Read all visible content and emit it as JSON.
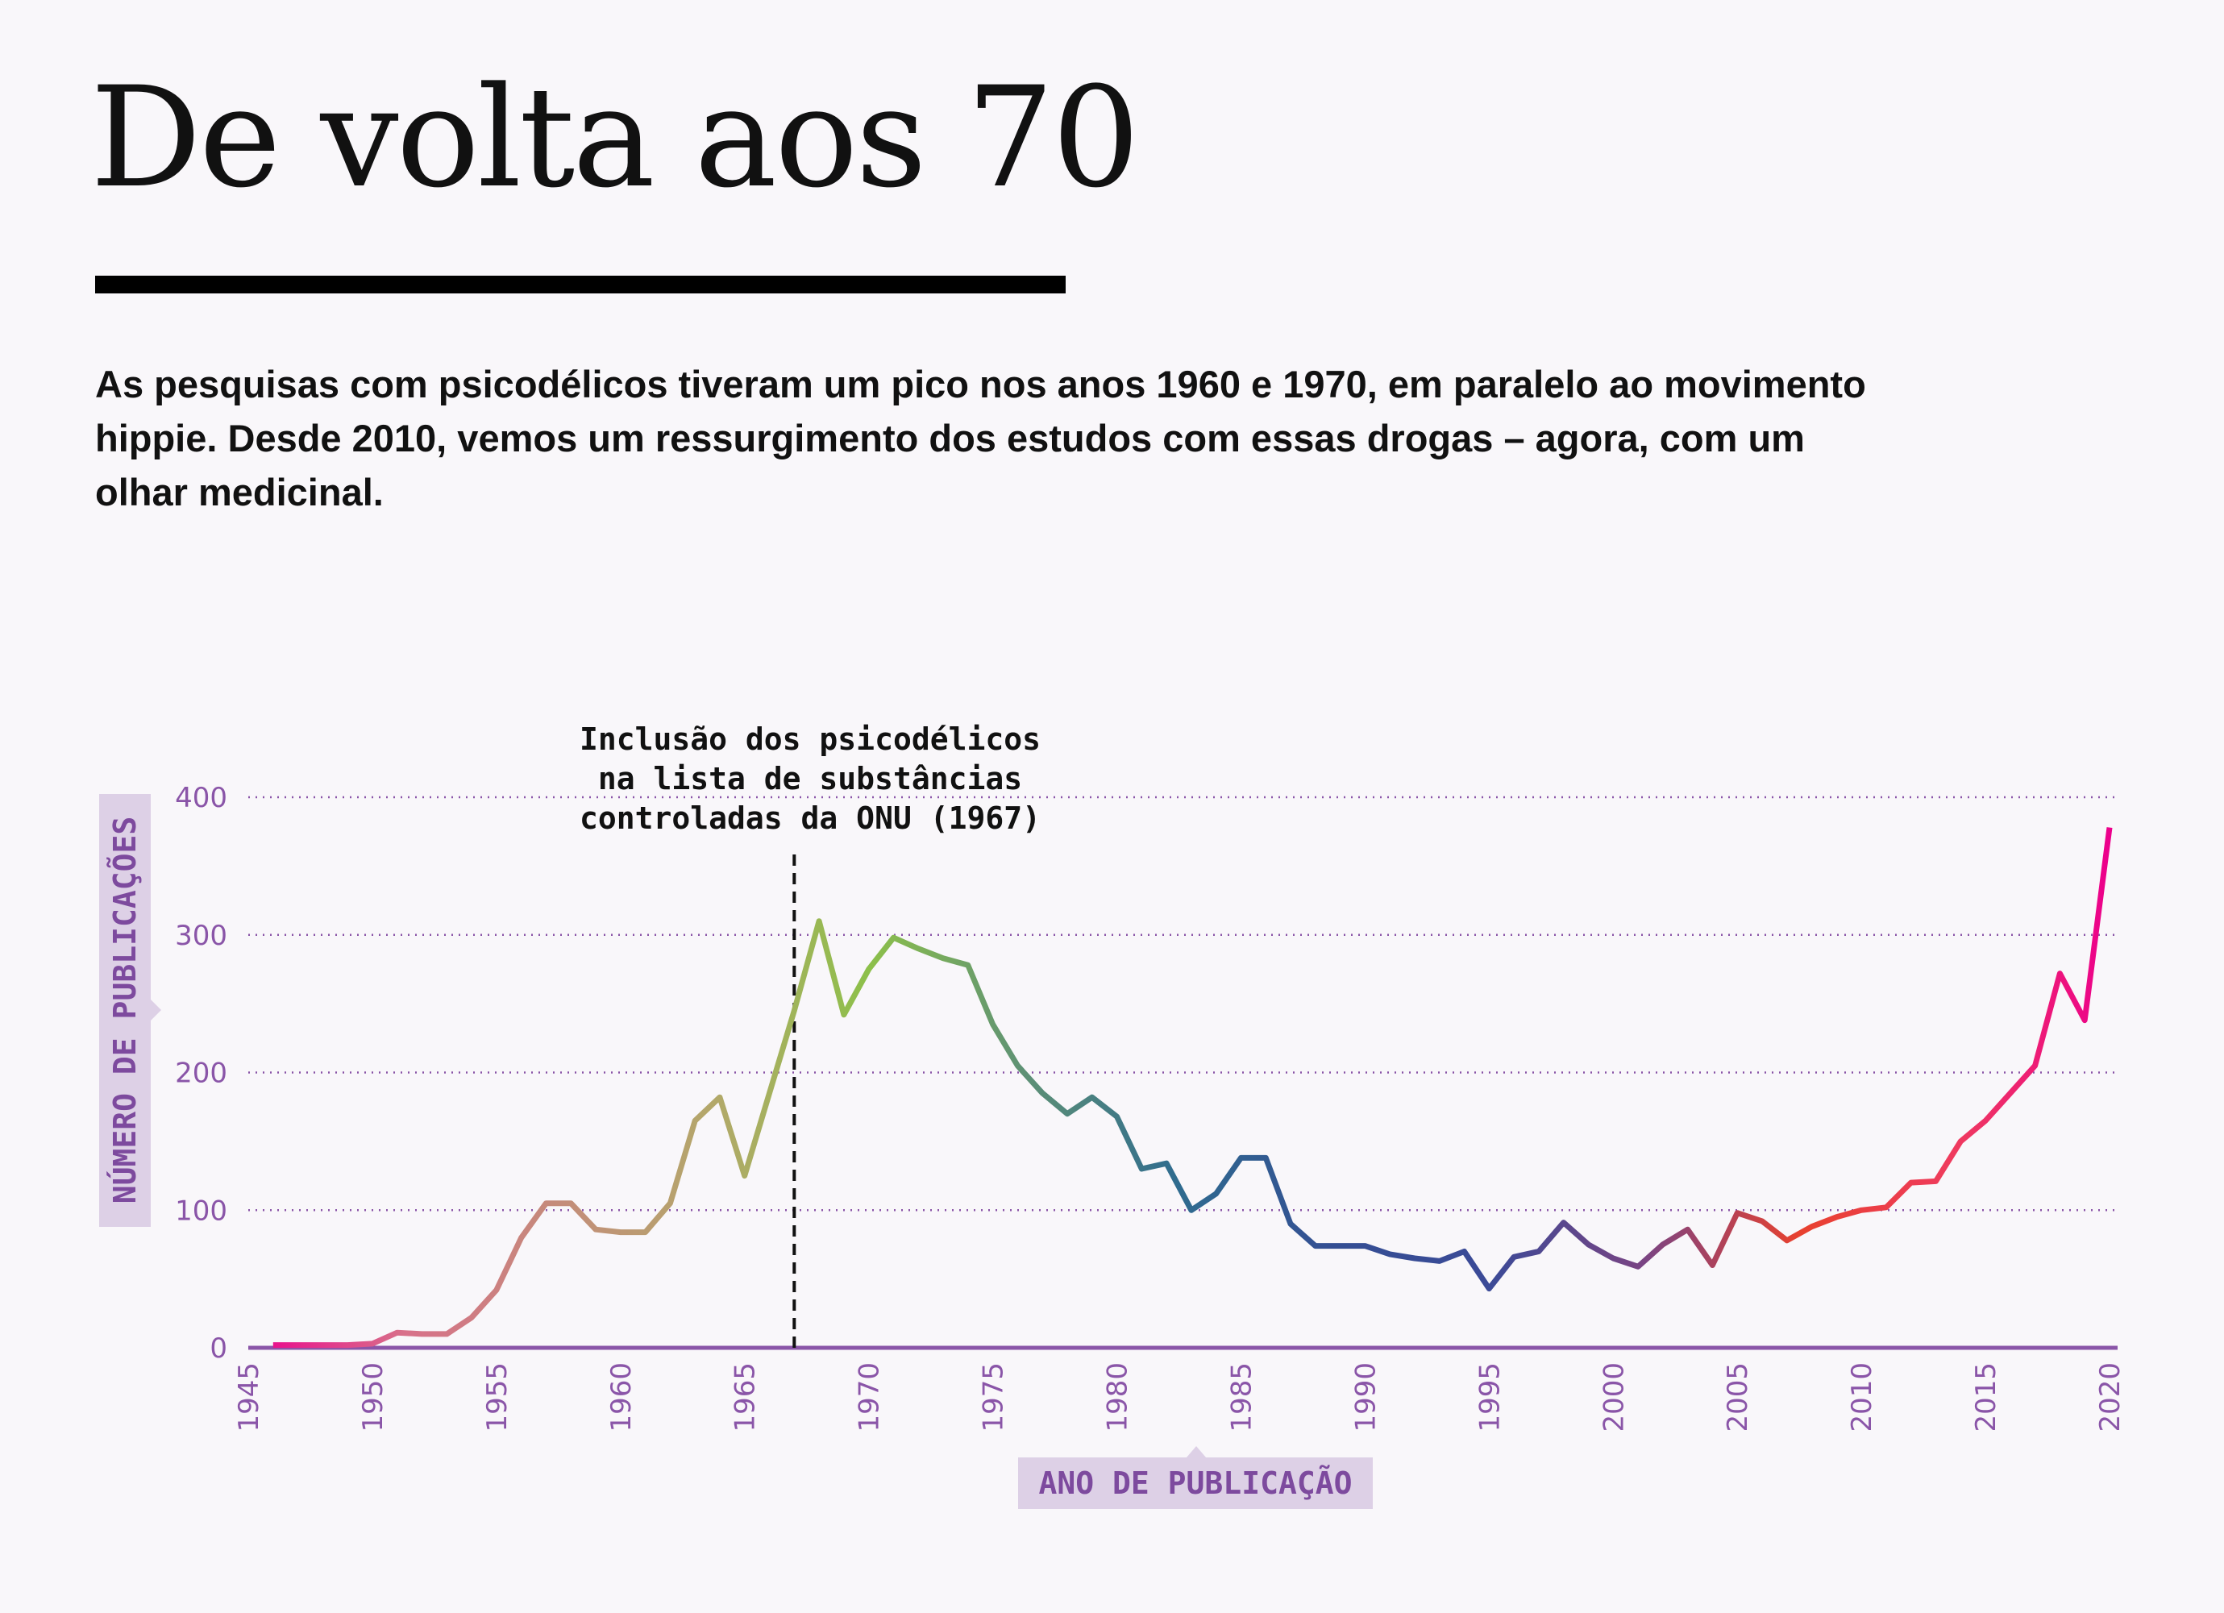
{
  "title": "De volta aos 70",
  "subtitle": "As pesquisas com psicodélicos tiveram um pico nos anos 1960 e 1970, em paralelo ao movimento hippie. Desde 2010, vemos um ressurgimento dos estudos com essas drogas – agora, com um olhar medicinal.",
  "chart_data": {
    "type": "line",
    "xlabel": "ANO DE PUBLICAÇÃO",
    "ylabel": "NÚMERO DE PUBLICAÇÕES",
    "xlim": [
      1945,
      2020
    ],
    "ylim": [
      0,
      400
    ],
    "xticks": [
      1945,
      1950,
      1955,
      1960,
      1965,
      1970,
      1975,
      1980,
      1985,
      1990,
      1995,
      2000,
      2005,
      2010,
      2015,
      2020
    ],
    "yticks": [
      0,
      100,
      200,
      300,
      400
    ],
    "grid": "horizontal dotted",
    "annotation": {
      "x": 1967,
      "lines": [
        "Inclusão dos psicodélicos",
        "na lista de substâncias",
        "controladas da ONU (1967)"
      ]
    },
    "x": [
      1946,
      1947,
      1948,
      1949,
      1950,
      1951,
      1952,
      1953,
      1954,
      1955,
      1956,
      1957,
      1958,
      1959,
      1960,
      1961,
      1962,
      1963,
      1964,
      1965,
      1966,
      1967,
      1968,
      1969,
      1970,
      1971,
      1972,
      1973,
      1974,
      1975,
      1976,
      1977,
      1978,
      1979,
      1980,
      1981,
      1982,
      1983,
      1984,
      1985,
      1986,
      1987,
      1988,
      1989,
      1990,
      1991,
      1992,
      1993,
      1994,
      1995,
      1996,
      1997,
      1998,
      1999,
      2000,
      2001,
      2002,
      2003,
      2004,
      2005,
      2006,
      2007,
      2008,
      2009,
      2010,
      2011,
      2012,
      2013,
      2014,
      2015,
      2016,
      2017,
      2018,
      2019,
      2020
    ],
    "values": [
      2,
      2,
      2,
      2,
      3,
      11,
      10,
      10,
      22,
      42,
      80,
      105,
      105,
      86,
      84,
      84,
      105,
      165,
      182,
      125,
      185,
      245,
      310,
      242,
      275,
      298,
      290,
      283,
      278,
      235,
      205,
      185,
      170,
      182,
      168,
      130,
      134,
      100,
      112,
      138,
      138,
      90,
      74,
      74,
      74,
      68,
      65,
      63,
      70,
      43,
      66,
      70,
      91,
      75,
      65,
      59,
      75,
      86,
      60,
      98,
      92,
      78,
      88,
      95,
      100,
      102,
      120,
      121,
      150,
      165,
      185,
      205,
      272,
      238,
      378
    ],
    "colors": {
      "gradient": [
        "#ec008c",
        "#d8708a",
        "#c48c7a",
        "#b3a86a",
        "#8dc04a",
        "#5e9175",
        "#2f6b8f",
        "#344e93",
        "#3b4a97",
        "#7a4483",
        "#e8412f",
        "#ef3b5e",
        "#ec008c"
      ],
      "axis": "#8a55a8",
      "label_bg": "#ddd0e6"
    }
  }
}
